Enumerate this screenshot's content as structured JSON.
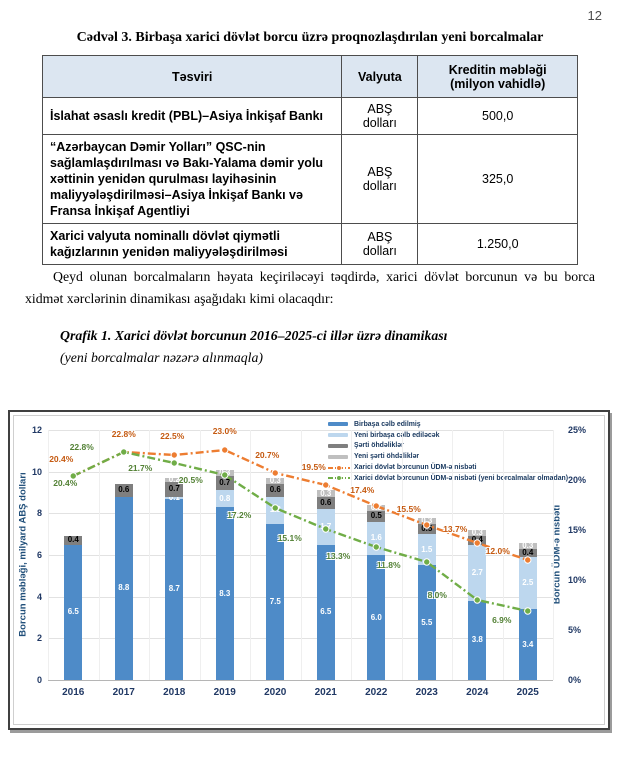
{
  "page": {
    "number": "12"
  },
  "table": {
    "title": "Cədvəl 3. Birbaşa xarici dövlət borcu üzrə proqnozlaşdırılan yeni borcalmalar",
    "headers": [
      "Təsviri",
      "Valyuta",
      "Kreditin məbləği (milyon vahidlə)"
    ],
    "rows": [
      {
        "desc": "İslahat əsaslı kredit (PBL)–Asiya İnkişaf Bankı",
        "currency": "ABŞ dolları",
        "amount": "500,0"
      },
      {
        "desc": "“Azərbaycan Dəmir Yolları” QSC-nin sağlamlaşdırılması və Bakı-Yalama dəmir yolu xəttinin yenidən qurulması layihəsinin maliyyələşdirilməsi–Asiya İnkişaf Bankı və Fransa İnkişaf Agentliyi",
        "currency": "ABŞ dolları",
        "amount": "325,0"
      },
      {
        "desc": "Xarici valyuta nominallı dövlət qiymətli kağızlarının yenidən maliyyələşdirilməsi",
        "currency": "ABŞ dolları",
        "amount": "1.250,0"
      }
    ]
  },
  "paragraph": {
    "text": "Qeyd olunan borcalmaların həyata keçiriləcəyi təqdirdə, xarici dövlət borcunun və bu borca xidmət xərclərinin dinamikası aşağıdakı kimi olacaqdır:"
  },
  "caption": {
    "line1": "Qrafik 1. Xarici dövlət borcunun 2016–2025-ci illər üzrə dinamikası",
    "line2": "(yeni borcalmalar nəzərə alınmaqla)"
  },
  "chart_data": {
    "type": "bar",
    "subtype": "stacked-bar-with-lines",
    "categories": [
      "2016",
      "2017",
      "2018",
      "2019",
      "2020",
      "2021",
      "2022",
      "2023",
      "2024",
      "2025"
    ],
    "series": [
      {
        "name": "Birbaşa cəlb edilmiş",
        "type": "bar",
        "color": "#4E8BC8",
        "label_color": "#ffffff",
        "values": [
          6.5,
          8.8,
          8.7,
          8.3,
          7.5,
          6.5,
          6.0,
          5.5,
          3.8,
          3.4
        ]
      },
      {
        "name": "Yeni birbaşa cəlb ediləcək",
        "type": "bar",
        "color": "#BDD7EE",
        "label_color": "#ffffff",
        "values": [
          0,
          0,
          0.1,
          0.8,
          1.3,
          1.7,
          1.6,
          1.5,
          2.7,
          2.5
        ]
      },
      {
        "name": "Şərti öhdəliklər",
        "type": "bar",
        "color": "#7F7F7F",
        "label_color": "#000000",
        "values": [
          0.4,
          0.6,
          0.7,
          0.7,
          0.6,
          0.6,
          0.5,
          0.5,
          0.4,
          0.4
        ]
      },
      {
        "name": "Yeni şərti öhdəliklər",
        "type": "bar",
        "color": "#BFBFBF",
        "label_color": "#ffffff",
        "values": [
          0,
          0,
          0.2,
          0.3,
          0.3,
          0.3,
          0.3,
          0.3,
          0.3,
          0.3
        ]
      },
      {
        "name": "Xarici dövlət borcunun ÜDM-ə nisbəti",
        "type": "line",
        "color": "#ED7D31",
        "label_color": "#C55A11",
        "values": [
          20.4,
          22.8,
          22.5,
          23.0,
          20.7,
          19.5,
          17.4,
          15.5,
          13.7,
          12.0
        ]
      },
      {
        "name": "Xarici dövlət borcunun ÜDM-ə nisbəti (yeni borcalmalar olmadan)",
        "type": "line",
        "color": "#70AD47",
        "label_color": "#538135",
        "values": [
          20.4,
          22.8,
          21.7,
          20.5,
          17.2,
          15.1,
          13.3,
          11.8,
          8.0,
          6.9
        ]
      }
    ],
    "left_axis": {
      "label": "Borcun məbləği, milyard ABŞ dolları",
      "ticks": [
        "0",
        "2",
        "4",
        "6",
        "8",
        "10",
        "12"
      ],
      "range": [
        0,
        12
      ]
    },
    "right_axis": {
      "label": "Borcun ÜDM-ə nisbəti",
      "ticks": [
        "0%",
        "5%",
        "10%",
        "15%",
        "20%",
        "25%"
      ],
      "range": [
        0,
        25
      ]
    },
    "grid": true,
    "legend_position": "top-right"
  }
}
